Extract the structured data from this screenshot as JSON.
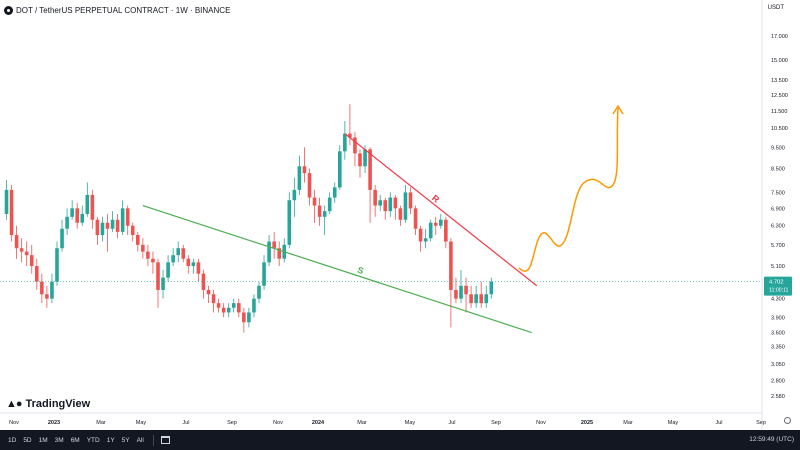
{
  "header": {
    "symbol": "DOT / TetherUS PERPETUAL CONTRACT · 1W · BINANCE"
  },
  "currency": "USDT",
  "brand": "TradingView",
  "toolbar": {
    "ranges": [
      "1D",
      "5D",
      "1M",
      "3M",
      "6M",
      "YTD",
      "1Y",
      "5Y",
      "All"
    ],
    "clock": "12:59:49 (UTC)"
  },
  "chart_data": {
    "type": "candlestick",
    "y_scale": "log",
    "ylim": [
      2.4,
      18.5
    ],
    "y_ticks": [
      "17.000",
      "15.000",
      "13.500",
      "12.500",
      "11.500",
      "10.500",
      "9.500",
      "8.500",
      "7.500",
      "6.900",
      "6.300",
      "5.700",
      "5.100",
      "4.300",
      "3.900",
      "3.600",
      "3.350",
      "3.050",
      "2.800",
      "2.580"
    ],
    "x_ticks": [
      "Nov",
      "2023",
      "Mar",
      "May",
      "Jul",
      "Sep",
      "Nov",
      "2024",
      "Mar",
      "May",
      "Jul",
      "Sep",
      "Nov",
      "2025",
      "Mar",
      "May",
      "Jul",
      "Sep"
    ],
    "current_price": "4.702",
    "countdown": "11:00:11",
    "colors": {
      "up": "#26a69a",
      "down": "#ef5350",
      "support": "#4caf50",
      "resistance": "#f23645",
      "projection": "#ff9800"
    },
    "candles": [
      [
        6.7,
        7.6,
        8.0,
        6.5
      ],
      [
        7.6,
        6.0,
        7.8,
        5.8
      ],
      [
        6.0,
        5.6,
        6.3,
        5.3
      ],
      [
        5.6,
        5.5,
        5.9,
        5.2
      ],
      [
        5.5,
        5.4,
        5.8,
        5.1
      ],
      [
        5.4,
        5.1,
        5.7,
        4.9
      ],
      [
        5.1,
        4.7,
        5.3,
        4.5
      ],
      [
        4.7,
        4.4,
        4.9,
        4.2
      ],
      [
        4.4,
        4.3,
        4.6,
        4.1
      ],
      [
        4.3,
        4.7,
        4.9,
        4.2
      ],
      [
        4.7,
        5.6,
        5.8,
        4.6
      ],
      [
        5.6,
        6.2,
        6.5,
        5.5
      ],
      [
        6.2,
        6.6,
        6.9,
        6.0
      ],
      [
        6.6,
        6.9,
        7.2,
        6.5
      ],
      [
        6.9,
        6.4,
        7.1,
        6.2
      ],
      [
        6.4,
        6.7,
        7.0,
        6.3
      ],
      [
        6.7,
        7.4,
        7.9,
        6.6
      ],
      [
        7.4,
        6.5,
        7.6,
        6.2
      ],
      [
        6.5,
        6.0,
        6.6,
        5.7
      ],
      [
        6.0,
        6.4,
        6.6,
        5.8
      ],
      [
        6.4,
        6.2,
        6.7,
        5.5
      ],
      [
        6.2,
        6.5,
        6.8,
        6.1
      ],
      [
        6.5,
        6.1,
        6.7,
        5.9
      ],
      [
        6.1,
        6.9,
        7.2,
        6.0
      ],
      [
        6.9,
        6.3,
        7.0,
        6.0
      ],
      [
        6.3,
        6.0,
        6.4,
        5.8
      ],
      [
        6.0,
        5.7,
        6.1,
        5.5
      ],
      [
        5.7,
        5.5,
        5.9,
        5.3
      ],
      [
        5.5,
        5.3,
        5.7,
        5.1
      ],
      [
        5.3,
        5.2,
        5.5,
        4.9
      ],
      [
        5.2,
        4.5,
        5.3,
        4.1
      ],
      [
        4.5,
        4.8,
        5.0,
        4.3
      ],
      [
        4.8,
        5.2,
        5.4,
        4.7
      ],
      [
        5.2,
        5.4,
        5.6,
        5.1
      ],
      [
        5.4,
        5.6,
        5.8,
        5.2
      ],
      [
        5.6,
        5.3,
        5.7,
        5.2
      ],
      [
        5.3,
        5.1,
        5.4,
        4.9
      ],
      [
        5.1,
        5.2,
        5.3,
        4.9
      ],
      [
        5.2,
        4.9,
        5.3,
        4.7
      ],
      [
        4.9,
        4.5,
        5.0,
        4.3
      ],
      [
        4.5,
        4.4,
        4.6,
        4.2
      ],
      [
        4.4,
        4.2,
        4.5,
        4.0
      ],
      [
        4.2,
        4.1,
        4.3,
        4.0
      ],
      [
        4.1,
        4.0,
        4.2,
        3.9
      ],
      [
        4.0,
        4.1,
        4.2,
        3.9
      ],
      [
        4.1,
        4.2,
        4.3,
        4.0
      ],
      [
        4.2,
        4.0,
        4.3,
        3.9
      ],
      [
        4.0,
        3.8,
        4.1,
        3.6
      ],
      [
        3.8,
        4.0,
        4.1,
        3.7
      ],
      [
        4.0,
        4.3,
        4.4,
        3.9
      ],
      [
        4.3,
        4.6,
        4.7,
        4.2
      ],
      [
        4.6,
        5.2,
        5.4,
        4.5
      ],
      [
        5.2,
        5.8,
        6.0,
        5.1
      ],
      [
        5.8,
        5.6,
        6.1,
        5.3
      ],
      [
        5.6,
        5.3,
        5.8,
        5.1
      ],
      [
        5.3,
        5.7,
        5.9,
        5.2
      ],
      [
        5.7,
        7.2,
        7.5,
        5.6
      ],
      [
        7.2,
        7.6,
        8.1,
        6.6
      ],
      [
        7.6,
        8.6,
        9.1,
        7.4
      ],
      [
        8.6,
        8.3,
        9.5,
        7.9
      ],
      [
        8.3,
        7.3,
        8.5,
        7.0
      ],
      [
        7.3,
        7.0,
        7.6,
        6.4
      ],
      [
        7.0,
        6.6,
        7.3,
        6.3
      ],
      [
        6.6,
        6.8,
        7.0,
        6.0
      ],
      [
        6.8,
        7.3,
        7.5,
        6.7
      ],
      [
        7.3,
        7.7,
        7.9,
        7.1
      ],
      [
        7.7,
        9.3,
        9.6,
        7.6
      ],
      [
        9.3,
        10.2,
        10.9,
        8.9
      ],
      [
        10.2,
        10.0,
        11.9,
        9.6
      ],
      [
        10.0,
        9.2,
        10.3,
        8.6
      ],
      [
        9.2,
        8.6,
        9.4,
        8.1
      ],
      [
        8.6,
        9.4,
        9.6,
        8.3
      ],
      [
        9.4,
        7.6,
        9.5,
        6.4
      ],
      [
        7.6,
        7.0,
        7.8,
        6.6
      ],
      [
        7.0,
        7.2,
        7.4,
        6.8
      ],
      [
        7.2,
        6.8,
        7.3,
        6.5
      ],
      [
        6.8,
        7.3,
        7.5,
        6.6
      ],
      [
        7.3,
        6.9,
        7.4,
        6.5
      ],
      [
        6.9,
        6.5,
        7.0,
        6.3
      ],
      [
        6.5,
        7.5,
        7.8,
        6.4
      ],
      [
        7.5,
        6.9,
        7.7,
        6.7
      ],
      [
        6.9,
        6.2,
        7.0,
        6.0
      ],
      [
        6.2,
        5.8,
        6.3,
        5.5
      ],
      [
        5.8,
        5.9,
        6.2,
        5.6
      ],
      [
        5.9,
        6.4,
        6.5,
        5.8
      ],
      [
        6.4,
        6.3,
        6.6,
        6.0
      ],
      [
        6.3,
        6.5,
        6.7,
        6.2
      ],
      [
        6.5,
        5.8,
        6.6,
        5.6
      ],
      [
        5.8,
        4.5,
        5.9,
        3.7
      ],
      [
        4.5,
        4.3,
        4.8,
        4.2
      ],
      [
        4.3,
        4.6,
        5.0,
        4.2
      ],
      [
        4.6,
        4.4,
        4.8,
        4.0
      ],
      [
        4.4,
        4.2,
        4.6,
        4.1
      ],
      [
        4.2,
        4.4,
        4.6,
        4.1
      ],
      [
        4.4,
        4.2,
        4.7,
        4.1
      ],
      [
        4.2,
        4.4,
        4.6,
        4.1
      ],
      [
        4.4,
        4.7,
        4.8,
        4.3
      ]
    ],
    "support_line": {
      "label": "S",
      "from": [
        27,
        7.0
      ],
      "to": [
        104,
        3.6
      ]
    },
    "resistance_line": {
      "label": "R",
      "from": [
        67,
        10.2
      ],
      "to": [
        105,
        4.6
      ]
    }
  }
}
